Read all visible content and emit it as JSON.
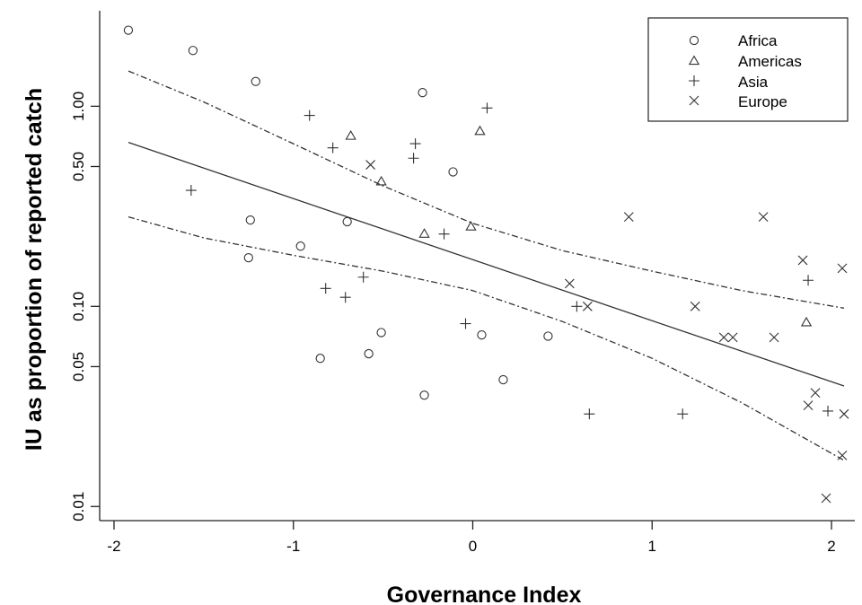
{
  "chart_data": {
    "type": "scatter",
    "title": "",
    "xlabel": "Governance Index",
    "ylabel": "IU as proportion of reported catch",
    "x_scale": "linear",
    "y_scale": "log",
    "xlim": [
      -2.08,
      2.1
    ],
    "ylim": [
      0.0085,
      3.0
    ],
    "x_ticks": [
      -2,
      -1,
      0,
      1,
      2
    ],
    "x_tick_labels": [
      "-2",
      "-1",
      "0",
      "1",
      "2"
    ],
    "y_ticks": [
      0.01,
      0.05,
      0.1,
      0.5,
      1.0
    ],
    "y_tick_labels": [
      "0.01",
      "0.05",
      "0.10",
      "0.50",
      "1.00"
    ],
    "grid": false,
    "legend_position": "top-right",
    "series": [
      {
        "name": "Africa",
        "marker": "circle",
        "points": [
          [
            -1.92,
            2.4
          ],
          [
            -1.56,
            1.9
          ],
          [
            -1.21,
            1.33
          ],
          [
            -0.28,
            1.17
          ],
          [
            -0.11,
            0.47
          ],
          [
            -1.24,
            0.27
          ],
          [
            -0.7,
            0.265
          ],
          [
            -0.96,
            0.2
          ],
          [
            -1.25,
            0.175
          ],
          [
            -0.51,
            0.074
          ],
          [
            -0.58,
            0.058
          ],
          [
            -0.85,
            0.055
          ],
          [
            0.05,
            0.072
          ],
          [
            0.42,
            0.071
          ],
          [
            -0.27,
            0.036
          ],
          [
            0.17,
            0.043
          ]
        ]
      },
      {
        "name": "Americas",
        "marker": "triangle",
        "points": [
          [
            -0.68,
            0.71
          ],
          [
            0.04,
            0.75
          ],
          [
            -0.51,
            0.42
          ],
          [
            -0.27,
            0.23
          ],
          [
            -0.01,
            0.25
          ],
          [
            1.86,
            0.083
          ]
        ]
      },
      {
        "name": "Asia",
        "marker": "plus",
        "points": [
          [
            -0.91,
            0.9
          ],
          [
            0.08,
            0.98
          ],
          [
            -0.78,
            0.62
          ],
          [
            -0.32,
            0.65
          ],
          [
            -0.33,
            0.55
          ],
          [
            -1.57,
            0.38
          ],
          [
            -0.16,
            0.23
          ],
          [
            -0.82,
            0.123
          ],
          [
            -0.61,
            0.14
          ],
          [
            -0.71,
            0.111
          ],
          [
            -0.04,
            0.082
          ],
          [
            0.58,
            0.1
          ],
          [
            0.65,
            0.029
          ],
          [
            1.17,
            0.029
          ],
          [
            1.87,
            0.135
          ],
          [
            1.98,
            0.03
          ]
        ]
      },
      {
        "name": "Europe",
        "marker": "cross",
        "points": [
          [
            -0.57,
            0.51
          ],
          [
            0.87,
            0.28
          ],
          [
            1.62,
            0.28
          ],
          [
            1.84,
            0.17
          ],
          [
            2.06,
            0.155
          ],
          [
            0.54,
            0.13
          ],
          [
            0.64,
            0.1
          ],
          [
            1.24,
            0.1
          ],
          [
            1.4,
            0.07
          ],
          [
            1.45,
            0.07
          ],
          [
            1.68,
            0.07
          ],
          [
            1.87,
            0.032
          ],
          [
            1.91,
            0.037
          ],
          [
            2.07,
            0.029
          ],
          [
            2.06,
            0.018
          ],
          [
            1.97,
            0.011
          ]
        ]
      }
    ],
    "fit_line": {
      "x": [
        -1.92,
        2.07
      ],
      "y": [
        0.66,
        0.04
      ]
    },
    "confidence_band": {
      "upper": {
        "x": [
          -1.92,
          -1.5,
          -1.0,
          -0.5,
          0.0,
          0.5,
          1.0,
          1.5,
          2.07
        ],
        "y": [
          1.5,
          1.05,
          0.65,
          0.4,
          0.26,
          0.19,
          0.15,
          0.12,
          0.098
        ]
      },
      "lower": {
        "x": [
          -1.92,
          -1.5,
          -1.0,
          -0.5,
          0.0,
          0.5,
          1.0,
          1.5,
          2.07
        ],
        "y": [
          0.28,
          0.22,
          0.18,
          0.15,
          0.12,
          0.084,
          0.055,
          0.033,
          0.017
        ]
      }
    }
  }
}
